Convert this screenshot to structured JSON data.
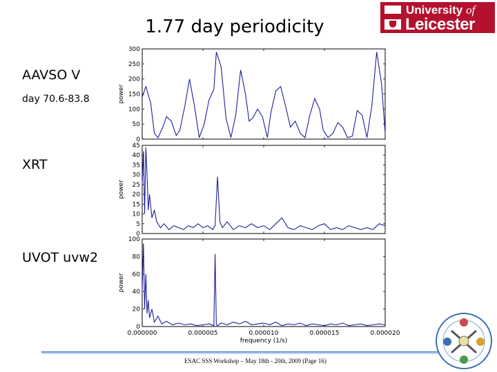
{
  "slide": {
    "title": "1.77 day periodicity",
    "labels": {
      "aavso": "AAVSO V",
      "aavso_sub": "day 70.6-83.8",
      "xrt": "XRT",
      "uvot": "UVOT uvw2"
    },
    "logo": {
      "line1_a": "University ",
      "line1_b": "of",
      "line2": "Leicester"
    },
    "footer": "ESAC SSS Workshop – May 18th - 20th, 2009 (Page 16)"
  },
  "colors": {
    "line": "#1d1d9c",
    "footer_rule": "#5f8fd6",
    "logo": "#b4112e"
  },
  "chart_data": [
    {
      "type": "line",
      "title": "",
      "xlabel": "",
      "ylabel": "power",
      "xlim": [
        0,
        2e-05
      ],
      "ylim": [
        0,
        300
      ],
      "yticks": [
        "0",
        "50",
        "100",
        "150",
        "200",
        "250",
        "300"
      ],
      "series": [
        {
          "x": [
            0,
            3e-07,
            7e-07,
            1e-06,
            1.3e-06,
            1.7e-06,
            2e-06,
            2.4e-06,
            2.8e-06,
            3.1e-06,
            3.5e-06,
            3.9e-06,
            4.3e-06,
            4.7e-06,
            5.1e-06,
            5.5e-06,
            5.9e-06,
            6.1e-06,
            6.5e-06,
            6.9e-06,
            7.3e-06,
            7.7e-06,
            8.1e-06,
            8.5e-06,
            8.8e-06,
            9.1e-06,
            9.5e-06,
            9.9e-06,
            1.03e-05,
            1.06e-05,
            1.1e-05,
            1.14e-05,
            1.18e-05,
            1.22e-05,
            1.26e-05,
            1.3e-05,
            1.34e-05,
            1.38e-05,
            1.42e-05,
            1.46e-05,
            1.49e-05,
            1.53e-05,
            1.57e-05,
            1.61e-05,
            1.65e-05,
            1.69e-05,
            1.73e-05,
            1.77e-05,
            1.81e-05,
            1.85e-05,
            1.89e-05,
            1.93e-05,
            1.97e-05,
            2e-05
          ],
          "y": [
            140,
            175,
            120,
            20,
            5,
            40,
            75,
            60,
            12,
            30,
            108,
            200,
            110,
            5,
            50,
            130,
            165,
            290,
            240,
            70,
            5,
            80,
            230,
            150,
            60,
            70,
            100,
            75,
            5,
            90,
            160,
            175,
            110,
            40,
            60,
            20,
            5,
            80,
            135,
            100,
            30,
            5,
            20,
            55,
            40,
            5,
            10,
            95,
            80,
            5,
            110,
            290,
            185,
            20
          ]
        }
      ]
    },
    {
      "type": "line",
      "title": "",
      "xlabel": "",
      "ylabel": "power",
      "xlim": [
        0,
        2e-05
      ],
      "ylim": [
        0,
        45
      ],
      "yticks": [
        "0",
        "5",
        "10",
        "15",
        "20",
        "25",
        "30",
        "35",
        "40",
        "45"
      ],
      "series": [
        {
          "x": [
            0,
            1e-07,
            2e-07,
            3e-07,
            4e-07,
            5e-07,
            6e-07,
            8e-07,
            1e-06,
            1.2e-06,
            1.5e-06,
            1.8e-06,
            2.2e-06,
            2.6e-06,
            3e-06,
            3.4e-06,
            3.8e-06,
            4.2e-06,
            4.6e-06,
            5e-06,
            5.4e-06,
            5.8e-06,
            6e-06,
            6.2e-06,
            6.4e-06,
            6.6e-06,
            7e-06,
            7.5e-06,
            8e-06,
            8.5e-06,
            9e-06,
            9.5e-06,
            1e-05,
            1.05e-05,
            1.1e-05,
            1.15e-05,
            1.2e-05,
            1.25e-05,
            1.3e-05,
            1.35e-05,
            1.4e-05,
            1.45e-05,
            1.5e-05,
            1.55e-05,
            1.6e-05,
            1.65e-05,
            1.7e-05,
            1.75e-05,
            1.8e-05,
            1.85e-05,
            1.9e-05,
            1.95e-05,
            2e-05
          ],
          "y": [
            25,
            42,
            10,
            44,
            30,
            12,
            20,
            8,
            12,
            6,
            3,
            5,
            2,
            4,
            3,
            2,
            4,
            3,
            5,
            3,
            4,
            2,
            4,
            29,
            6,
            3,
            6,
            2,
            4,
            3,
            5,
            3,
            4,
            2,
            5,
            8,
            3,
            2,
            4,
            3,
            2,
            4,
            5,
            2,
            3,
            2,
            4,
            3,
            2,
            3,
            2,
            5,
            4
          ]
        }
      ]
    },
    {
      "type": "line",
      "title": "",
      "xlabel": "frequency (1/s)",
      "ylabel": "power",
      "xlim": [
        0,
        2e-05
      ],
      "ylim": [
        0,
        100
      ],
      "yticks": [
        "0",
        "20",
        "40",
        "60",
        "80",
        "100"
      ],
      "xticks": [
        "0.000000",
        "0.000005",
        "0.000010",
        "0.000015",
        "0.000020"
      ],
      "series": [
        {
          "x": [
            0,
            1e-07,
            2e-07,
            3e-07,
            4e-07,
            5e-07,
            6e-07,
            8e-07,
            1e-06,
            1.3e-06,
            1.6e-06,
            2e-06,
            2.5e-06,
            3e-06,
            3.5e-06,
            4e-06,
            4.5e-06,
            5e-06,
            5.5e-06,
            5.9e-06,
            6e-06,
            6.1e-06,
            6.2e-06,
            6.5e-06,
            7e-06,
            7.5e-06,
            8e-06,
            8.5e-06,
            9e-06,
            9.5e-06,
            1e-05,
            1.05e-05,
            1.1e-05,
            1.15e-05,
            1.2e-05,
            1.25e-05,
            1.3e-05,
            1.35e-05,
            1.4e-05,
            1.45e-05,
            1.5e-05,
            1.55e-05,
            1.6e-05,
            1.65e-05,
            1.7e-05,
            1.75e-05,
            1.8e-05,
            1.85e-05,
            1.9e-05,
            1.95e-05,
            2e-05
          ],
          "y": [
            40,
            95,
            20,
            60,
            15,
            30,
            10,
            20,
            5,
            12,
            3,
            6,
            2,
            4,
            2,
            3,
            1,
            2,
            3,
            1,
            83,
            2,
            1,
            4,
            2,
            5,
            3,
            6,
            2,
            3,
            4,
            2,
            5,
            1,
            3,
            2,
            4,
            1,
            3,
            2,
            1,
            3,
            2,
            4,
            1,
            2,
            3,
            1,
            2,
            3,
            2
          ]
        }
      ]
    }
  ]
}
